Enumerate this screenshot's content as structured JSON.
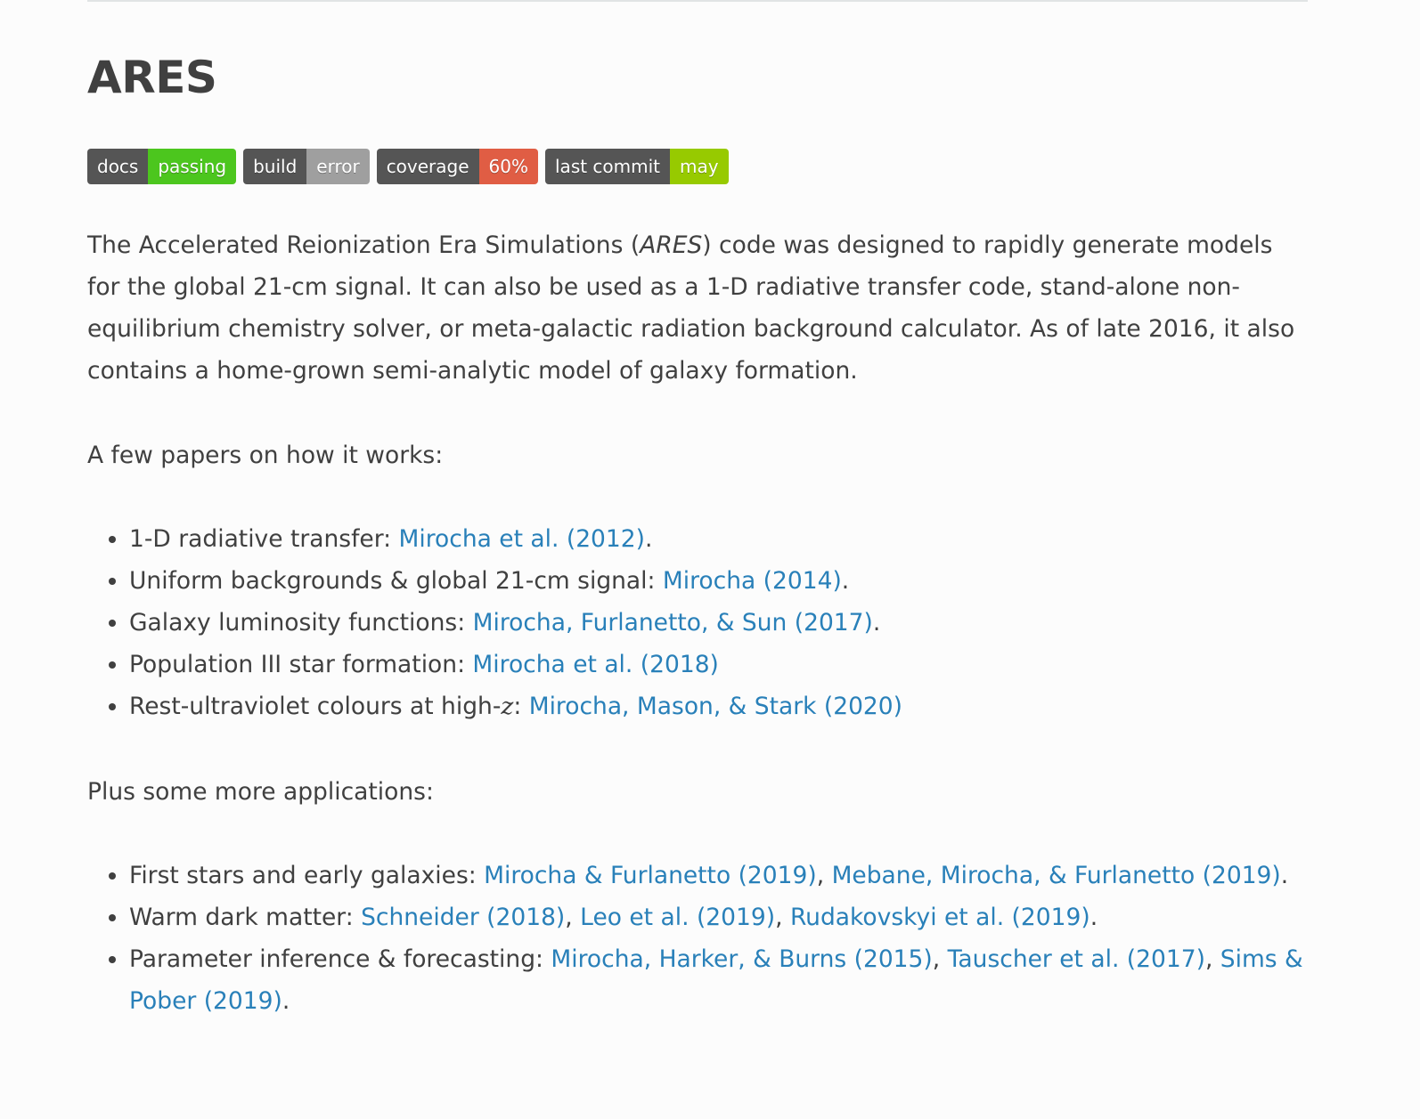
{
  "title": "ARES",
  "badges": [
    {
      "label": "docs",
      "value": "passing",
      "color": "#4cc61e"
    },
    {
      "label": "build",
      "value": "error",
      "color": "#9f9f9f"
    },
    {
      "label": "coverage",
      "value": "60%",
      "color": "#e05d44"
    },
    {
      "label": "last commit",
      "value": "may",
      "color": "#97ca00"
    }
  ],
  "intro": {
    "before": "The Accelerated Reionization Era Simulations (",
    "emph": "ARES",
    "after": ") code was designed to rapidly generate models for the global 21-cm signal. It can also be used as a 1-D radiative transfer code, stand-alone non-equilibrium chemistry solver, or meta-galactic radiation background calculator. As of late 2016, it also contains a home-grown semi-analytic model of galaxy formation."
  },
  "papers_intro": "A few papers on how it works:",
  "papers": [
    {
      "label": "1-D radiative transfer: ",
      "links": [
        "Mirocha et al. (2012)"
      ],
      "end": "."
    },
    {
      "label": "Uniform backgrounds & global 21-cm signal: ",
      "links": [
        "Mirocha (2014)"
      ],
      "end": "."
    },
    {
      "label": "Galaxy luminosity functions: ",
      "links": [
        "Mirocha, Furlanetto, & Sun (2017)"
      ],
      "end": "."
    },
    {
      "label": "Population III star formation: ",
      "links": [
        "Mirocha et al. (2018)"
      ],
      "end": ""
    },
    {
      "label": "Rest-ultraviolet colours at high-",
      "var": "z",
      "label_after": ": ",
      "links": [
        "Mirocha, Mason, & Stark (2020)"
      ],
      "end": ""
    }
  ],
  "applications_intro": "Plus some more applications:",
  "applications": [
    {
      "label": "First stars and early galaxies: ",
      "links": [
        "Mirocha & Furlanetto (2019)",
        "Mebane, Mirocha, & Furlanetto (2019)"
      ],
      "end": "."
    },
    {
      "label": "Warm dark matter: ",
      "links": [
        "Schneider (2018)",
        "Leo et al. (2019)",
        "Rudakovskyi et al. (2019)"
      ],
      "end": "."
    },
    {
      "label": "Parameter inference & forecasting: ",
      "links": [
        "Mirocha, Harker, & Burns (2015)",
        "Tauscher et al. (2017)",
        "Sims & Pober (2019)"
      ],
      "end": "."
    }
  ],
  "link_color": "#2980b9"
}
